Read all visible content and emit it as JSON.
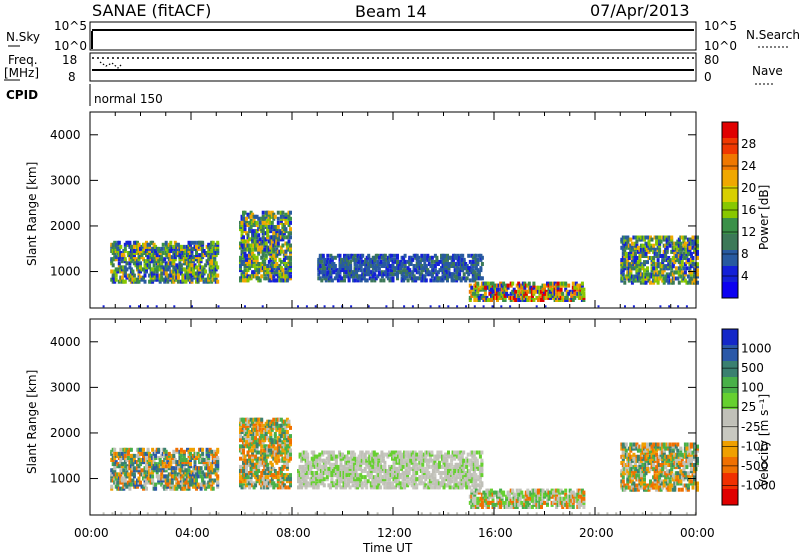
{
  "header": {
    "station": "SANAE (fitACF)",
    "beam": "Beam 14",
    "date": "07/Apr/2013"
  },
  "top_panels": {
    "nsky": {
      "label": "N.Sky",
      "ticks": [
        "10^5",
        "10^0"
      ]
    },
    "nsearch": {
      "label": "N.Search",
      "ticks": [
        "10^5",
        "10^0"
      ]
    },
    "freq": {
      "label_line1": "Freq.",
      "label_line2": "[MHz]",
      "ticks": [
        "18",
        "8"
      ]
    },
    "nave": {
      "label": "Nave",
      "ticks": [
        "80",
        "0"
      ]
    },
    "cpid": {
      "label": "CPID",
      "value": "normal 150"
    }
  },
  "chart_data": [
    {
      "type": "heatmap",
      "name": "power",
      "ylabel": "Slant Range [km]",
      "xlabel": "",
      "ylim": [
        200,
        4500
      ],
      "xlim_hours": [
        0,
        24
      ],
      "yticks": [
        "4000",
        "3000",
        "2000",
        "1000"
      ],
      "colorbar": {
        "title": "Power [dB]",
        "labels": [
          "28",
          "24",
          "20",
          "16",
          "12",
          "8",
          "4"
        ],
        "colors": [
          "#e00000",
          "#f03800",
          "#f07800",
          "#f0a800",
          "#d8d000",
          "#88c800",
          "#3a9048",
          "#3c7858",
          "#285aa0",
          "#1420d8",
          "#0c00f0"
        ]
      },
      "regions": [
        {
          "t0": 0.8,
          "t1": 5.0,
          "r0": 820,
          "r1": 1700,
          "mix": "low"
        },
        {
          "t0": 5.9,
          "t1": 7.9,
          "r0": 850,
          "r1": 2350,
          "mix": "low"
        },
        {
          "t0": 9.0,
          "t1": 15.5,
          "r0": 850,
          "r1": 1400,
          "mix": "vlow"
        },
        {
          "t0": 15.0,
          "t1": 19.5,
          "r0": 420,
          "r1": 800,
          "mix": "hot"
        },
        {
          "t0": 21.0,
          "t1": 24.0,
          "r0": 800,
          "r1": 1800,
          "mix": "low"
        }
      ]
    },
    {
      "type": "heatmap",
      "name": "velocity",
      "ylabel": "Slant Range [km]",
      "xlabel": "Time UT",
      "ylim": [
        200,
        4500
      ],
      "xlim_hours": [
        0,
        24
      ],
      "yticks": [
        "4000",
        "3000",
        "2000",
        "1000"
      ],
      "xticks": [
        "00:00",
        "04:00",
        "08:00",
        "12:00",
        "16:00",
        "20:00",
        "00:00"
      ],
      "colorbar": {
        "title": "Velocity [m s⁻¹]",
        "labels": [
          "1000",
          "500",
          "100",
          "25",
          "-25",
          "-100",
          "-500",
          "-1000"
        ],
        "colors": [
          "#1428c8",
          "#2a58a8",
          "#3a8070",
          "#48b048",
          "#66d030",
          "#c0c0b8",
          "#c8c8c0",
          "#f0a000",
          "#f07000",
          "#f03000",
          "#e00000"
        ]
      },
      "regions": [
        {
          "t0": 0.8,
          "t1": 5.0,
          "r0": 820,
          "r1": 1700,
          "mix": "mixed"
        },
        {
          "t0": 5.9,
          "t1": 7.9,
          "r0": 850,
          "r1": 2350,
          "mix": "orange"
        },
        {
          "t0": 8.2,
          "t1": 15.5,
          "r0": 850,
          "r1": 1650,
          "mix": "gray"
        },
        {
          "t0": 15.0,
          "t1": 19.5,
          "r0": 420,
          "r1": 800,
          "mix": "graygreen"
        },
        {
          "t0": 21.0,
          "t1": 24.0,
          "r0": 800,
          "r1": 1800,
          "mix": "orange"
        }
      ]
    }
  ]
}
